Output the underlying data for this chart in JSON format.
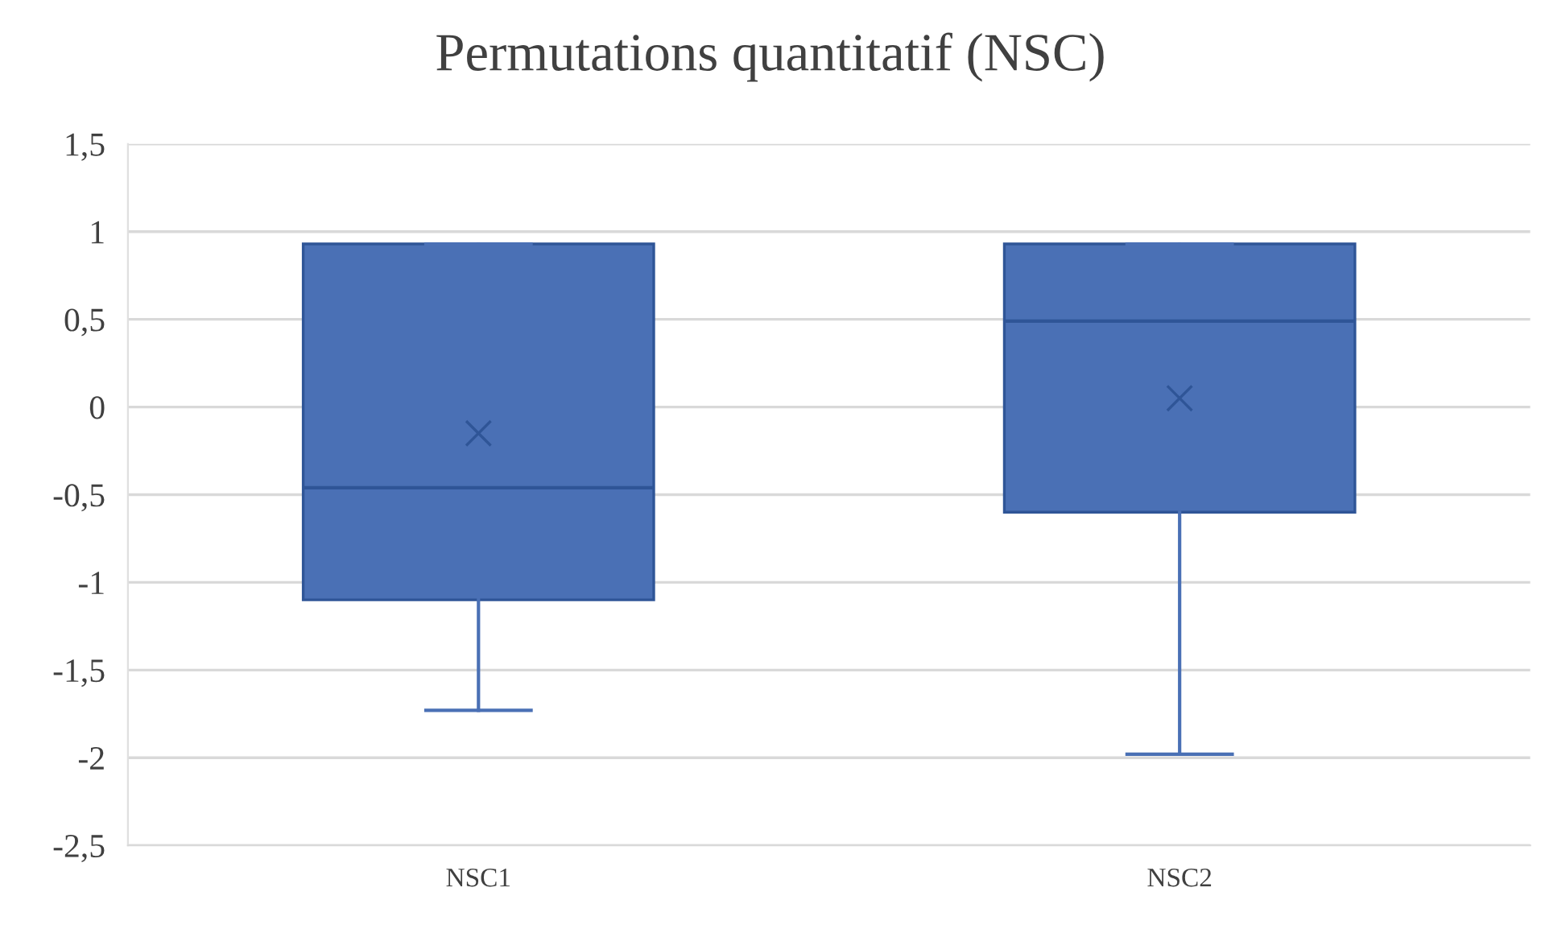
{
  "chart_data": {
    "type": "box",
    "title": "Permutations quantitatif (NSC)",
    "categories": [
      "NSC1",
      "NSC2"
    ],
    "series": [
      {
        "color": "#4a70b5",
        "boxes": [
          {
            "low": -1.73,
            "q1": -1.1,
            "median": -0.46,
            "q3": 0.93,
            "high": 0.93,
            "mean": -0.15
          },
          {
            "low": -1.98,
            "q1": -0.6,
            "median": 0.49,
            "q3": 0.93,
            "high": 0.93,
            "mean": 0.05
          }
        ]
      }
    ],
    "ylim": [
      -2.5,
      1.5
    ],
    "yticks": [
      {
        "value": -2.5,
        "label": "-2,5"
      },
      {
        "value": -2,
        "label": "-2"
      },
      {
        "value": -1.5,
        "label": "-1,5"
      },
      {
        "value": -1,
        "label": "-1"
      },
      {
        "value": -0.5,
        "label": "-0,5"
      },
      {
        "value": 0,
        "label": "0"
      },
      {
        "value": 0.5,
        "label": "0,5"
      },
      {
        "value": 1,
        "label": "1"
      },
      {
        "value": 1.5,
        "label": "1,5"
      }
    ],
    "grid": "y",
    "legend": false
  }
}
